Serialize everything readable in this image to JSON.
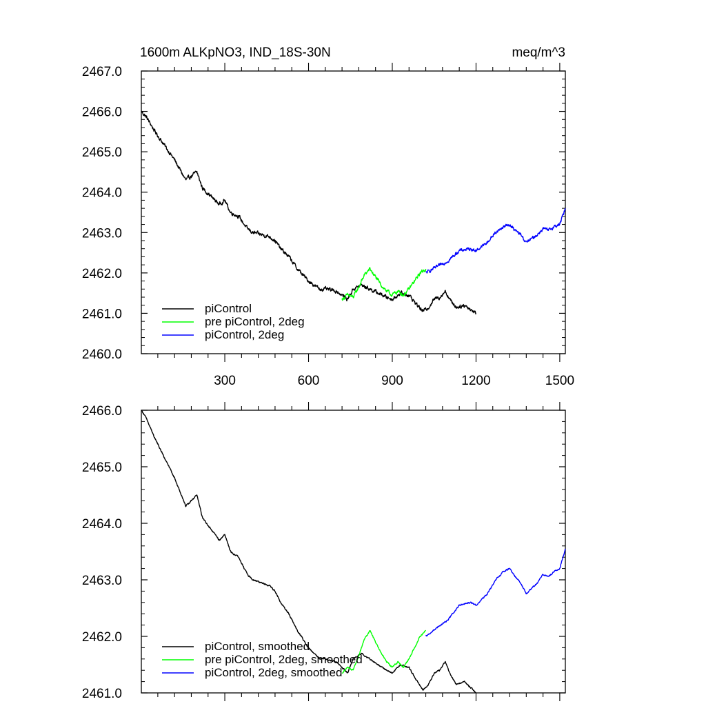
{
  "chart_data": [
    {
      "type": "line",
      "title": "1600m ALKpNO3, IND_18S-30N",
      "units": "meq/m^3",
      "xlim": [
        1,
        1520
      ],
      "ylim": [
        2460,
        2467
      ],
      "xticks": [
        300,
        600,
        900,
        1200,
        1500
      ],
      "xtick_labels": [
        "300",
        "600",
        "900",
        "1200",
        "1500"
      ],
      "yticks": [
        2460,
        2461,
        2462,
        2463,
        2464,
        2465,
        2466,
        2467
      ],
      "ytick_labels": [
        "2460.0",
        "2461.0",
        "2462.0",
        "2463.0",
        "2464.0",
        "2465.0",
        "2466.0",
        "2467.0"
      ],
      "legend_position": "bottom-left",
      "series": [
        {
          "name": "piControl",
          "color": "#000000",
          "noise": 0.07,
          "x": [
            1,
            20,
            50,
            80,
            120,
            160,
            180,
            200,
            220,
            250,
            280,
            300,
            320,
            350,
            380,
            400,
            430,
            460,
            480,
            500,
            530,
            560,
            600,
            640,
            660,
            700,
            720,
            740,
            760,
            790,
            820,
            850,
            880,
            900,
            930,
            960,
            990,
            1010,
            1030,
            1050,
            1070,
            1090,
            1110,
            1130,
            1160,
            1180,
            1200
          ],
          "y": [
            2466.0,
            2465.85,
            2465.5,
            2465.2,
            2464.8,
            2464.3,
            2464.4,
            2464.5,
            2464.1,
            2463.9,
            2463.7,
            2463.8,
            2463.5,
            2463.4,
            2463.1,
            2463.0,
            2462.95,
            2462.9,
            2462.8,
            2462.6,
            2462.4,
            2462.1,
            2461.8,
            2461.6,
            2461.6,
            2461.55,
            2461.45,
            2461.35,
            2461.6,
            2461.7,
            2461.6,
            2461.5,
            2461.4,
            2461.35,
            2461.5,
            2461.45,
            2461.2,
            2461.05,
            2461.15,
            2461.35,
            2461.4,
            2461.55,
            2461.3,
            2461.15,
            2461.2,
            2461.1,
            2461.0
          ]
        },
        {
          "name": "pre piControl, 2deg",
          "color": "#00ff00",
          "noise": 0.07,
          "x": [
            720,
            740,
            760,
            780,
            800,
            820,
            840,
            860,
            880,
            900,
            920,
            940,
            960,
            980,
            1000,
            1020
          ],
          "y": [
            2461.35,
            2461.45,
            2461.4,
            2461.65,
            2461.95,
            2462.1,
            2461.9,
            2461.7,
            2461.55,
            2461.45,
            2461.55,
            2461.45,
            2461.6,
            2461.8,
            2462.0,
            2462.1
          ]
        },
        {
          "name": "piControl, 2deg",
          "color": "#0000ff",
          "noise": 0.06,
          "x": [
            1020,
            1060,
            1100,
            1140,
            1180,
            1200,
            1240,
            1270,
            1300,
            1320,
            1340,
            1360,
            1380,
            1400,
            1420,
            1440,
            1460,
            1480,
            1500,
            1520
          ],
          "y": [
            2462.0,
            2462.15,
            2462.3,
            2462.55,
            2462.6,
            2462.55,
            2462.75,
            2463.0,
            2463.15,
            2463.2,
            2463.05,
            2462.95,
            2462.75,
            2462.85,
            2462.95,
            2463.1,
            2463.05,
            2463.15,
            2463.2,
            2463.6
          ]
        }
      ]
    },
    {
      "type": "line",
      "xlim": [
        1,
        1520
      ],
      "ylim": [
        2461,
        2466
      ],
      "xticks": [
        300,
        600,
        900,
        1200,
        1500
      ],
      "yticks": [
        2461,
        2462,
        2463,
        2464,
        2465,
        2466
      ],
      "ytick_labels": [
        "2461.0",
        "2462.0",
        "2463.0",
        "2464.0",
        "2465.0",
        "2466.0"
      ],
      "legend_position": "bottom-left",
      "series": [
        {
          "name": "piControl, smoothed",
          "color": "#000000",
          "noise": 0.02,
          "x": [
            1,
            20,
            50,
            80,
            120,
            160,
            180,
            200,
            220,
            250,
            280,
            300,
            320,
            350,
            380,
            400,
            430,
            460,
            480,
            500,
            530,
            560,
            600,
            640,
            660,
            700,
            720,
            740,
            760,
            790,
            820,
            850,
            880,
            900,
            930,
            960,
            990,
            1010,
            1030,
            1050,
            1070,
            1090,
            1110,
            1130,
            1160,
            1180,
            1200
          ],
          "y": [
            2466.0,
            2465.85,
            2465.5,
            2465.2,
            2464.8,
            2464.3,
            2464.4,
            2464.5,
            2464.1,
            2463.9,
            2463.7,
            2463.8,
            2463.5,
            2463.4,
            2463.1,
            2463.0,
            2462.95,
            2462.9,
            2462.8,
            2462.6,
            2462.4,
            2462.1,
            2461.8,
            2461.6,
            2461.6,
            2461.55,
            2461.45,
            2461.35,
            2461.6,
            2461.7,
            2461.6,
            2461.5,
            2461.4,
            2461.35,
            2461.5,
            2461.45,
            2461.2,
            2461.05,
            2461.15,
            2461.35,
            2461.4,
            2461.55,
            2461.3,
            2461.15,
            2461.2,
            2461.1,
            2461.0
          ]
        },
        {
          "name": "pre piControl, 2deg, smoothed",
          "color": "#00ff00",
          "noise": 0.02,
          "x": [
            720,
            740,
            760,
            780,
            800,
            820,
            840,
            860,
            880,
            900,
            920,
            940,
            960,
            980,
            1000,
            1020
          ],
          "y": [
            2461.35,
            2461.45,
            2461.4,
            2461.65,
            2461.95,
            2462.1,
            2461.9,
            2461.7,
            2461.55,
            2461.45,
            2461.55,
            2461.45,
            2461.6,
            2461.8,
            2462.0,
            2462.1
          ]
        },
        {
          "name": "piControl, 2deg, smoothed",
          "color": "#0000ff",
          "noise": 0.02,
          "x": [
            1020,
            1060,
            1100,
            1140,
            1180,
            1200,
            1240,
            1270,
            1300,
            1320,
            1340,
            1360,
            1380,
            1400,
            1420,
            1440,
            1460,
            1480,
            1500,
            1520
          ],
          "y": [
            2462.0,
            2462.15,
            2462.3,
            2462.55,
            2462.6,
            2462.55,
            2462.75,
            2463.0,
            2463.15,
            2463.2,
            2463.05,
            2462.95,
            2462.75,
            2462.85,
            2462.95,
            2463.1,
            2463.05,
            2463.15,
            2463.2,
            2463.55
          ]
        }
      ]
    }
  ]
}
